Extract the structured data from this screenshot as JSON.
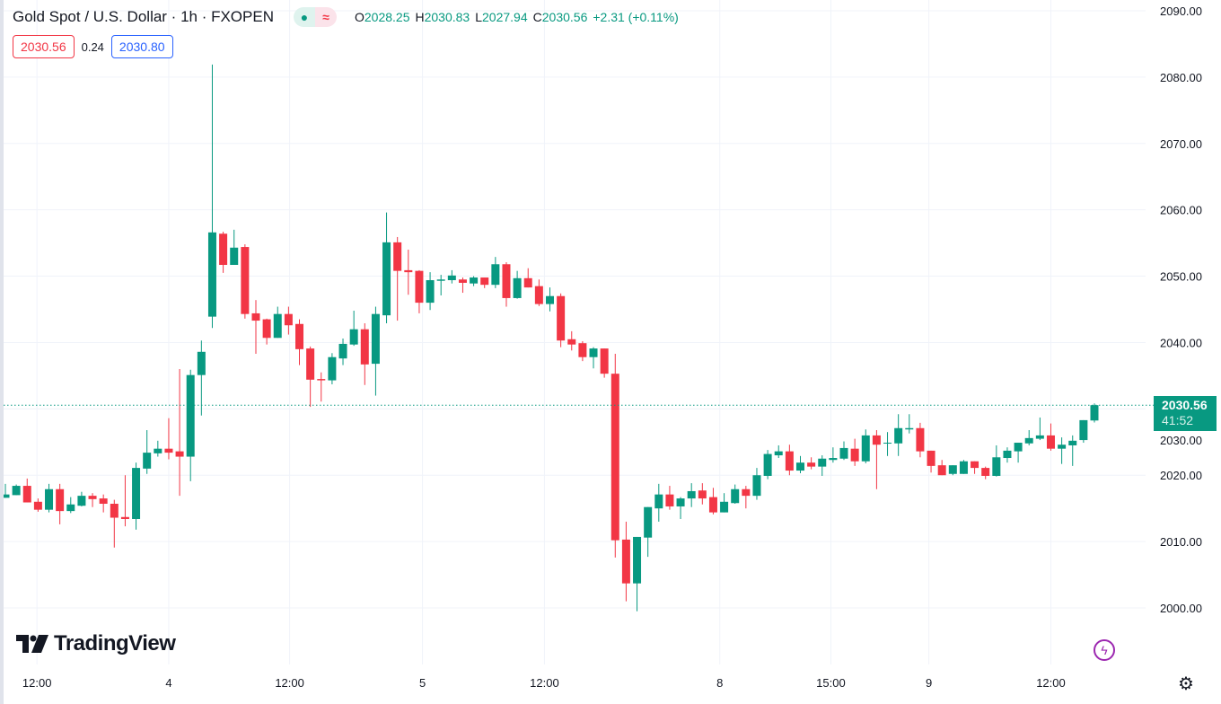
{
  "header": {
    "title": "Gold Spot / U.S. Dollar · 1h · FXOPEN",
    "ohlc": {
      "o_label": "O",
      "o": "2028.25",
      "h_label": "H",
      "h": "2030.83",
      "l_label": "L",
      "l": "2027.94",
      "c_label": "C",
      "c": "2030.56",
      "change": "+2.31 (+0.11%)"
    },
    "sell_price": "2030.56",
    "spread": "0.24",
    "buy_price": "2030.80"
  },
  "price_tag": {
    "price": "2030.56",
    "countdown": "41:52"
  },
  "branding": {
    "logo_text": "TradingView"
  },
  "colors": {
    "up": "#089981",
    "down": "#f23645",
    "grid": "#f0f3fa",
    "accent_purple": "#9c27b0"
  },
  "icons": [
    "market-open-dot-icon",
    "delay-wave-icon",
    "lightning-icon",
    "gear-icon",
    "tradingview-logo-icon"
  ],
  "chart_data": {
    "type": "candlestick",
    "title": "Gold Spot / U.S. Dollar · 1h · FXOPEN",
    "ylim": [
      1993,
      2092
    ],
    "y_ticks": [
      "2000.00",
      "2010.00",
      "2020.00",
      "2030.00",
      "2040.00",
      "2050.00",
      "2060.00",
      "2070.00",
      "2080.00",
      "2090.00"
    ],
    "x_ticks": [
      {
        "label": "12:00",
        "index": 2.9
      },
      {
        "label": "4",
        "index": 15
      },
      {
        "label": "12:00",
        "index": 26.1
      },
      {
        "label": "5",
        "index": 38.3
      },
      {
        "label": "12:00",
        "index": 49.5
      },
      {
        "label": "8",
        "index": 65.6
      },
      {
        "label": "15:00",
        "index": 75.8
      },
      {
        "label": "9",
        "index": 84.8
      },
      {
        "label": "12:00",
        "index": 96
      }
    ],
    "last_price": 2030.56,
    "grid": true,
    "ohlc": [
      [
        2016.6,
        2018.7,
        2016.6,
        2017.1
      ],
      [
        2017.0,
        2018.6,
        2017.0,
        2018.4
      ],
      [
        2018.4,
        2019.5,
        2015.9,
        2015.9
      ],
      [
        2016.0,
        2016.5,
        2014.5,
        2014.8
      ],
      [
        2014.8,
        2018.7,
        2014.4,
        2017.9
      ],
      [
        2017.9,
        2018.7,
        2012.6,
        2014.6
      ],
      [
        2014.6,
        2016.7,
        2014.3,
        2015.6
      ],
      [
        2015.4,
        2017.5,
        2015.3,
        2016.9
      ],
      [
        2016.9,
        2017.3,
        2015.2,
        2016.4
      ],
      [
        2016.5,
        2017.1,
        2014.4,
        2015.7
      ],
      [
        2015.7,
        2016.3,
        2009.1,
        2013.6
      ],
      [
        2013.7,
        2020.0,
        2012.3,
        2013.4
      ],
      [
        2013.4,
        2021.9,
        2011.8,
        2021.1
      ],
      [
        2021.0,
        2026.8,
        2020.2,
        2023.4
      ],
      [
        2023.3,
        2025.2,
        2022.8,
        2024.0
      ],
      [
        2024.0,
        2028.6,
        2022.4,
        2023.4
      ],
      [
        2023.6,
        2036.0,
        2016.9,
        2022.8
      ],
      [
        2022.8,
        2035.9,
        2019.1,
        2035.1
      ],
      [
        2035.1,
        2040.3,
        2029.0,
        2038.6
      ],
      [
        2043.9,
        2081.9,
        2042.2,
        2056.6
      ],
      [
        2056.4,
        2056.7,
        2050.5,
        2051.7
      ],
      [
        2051.7,
        2057.0,
        2051.7,
        2054.3
      ],
      [
        2054.4,
        2054.8,
        2043.6,
        2044.3
      ],
      [
        2044.4,
        2046.4,
        2038.3,
        2043.3
      ],
      [
        2043.5,
        2043.6,
        2039.7,
        2040.7
      ],
      [
        2040.7,
        2045.4,
        2040.7,
        2044.3
      ],
      [
        2044.3,
        2045.4,
        2041.2,
        2042.6
      ],
      [
        2042.8,
        2043.5,
        2036.6,
        2039.0
      ],
      [
        2039.1,
        2039.4,
        2030.3,
        2034.4
      ],
      [
        2034.5,
        2035.5,
        2031.1,
        2034.3
      ],
      [
        2034.3,
        2038.4,
        2033.7,
        2037.8
      ],
      [
        2037.6,
        2040.6,
        2036.6,
        2039.8
      ],
      [
        2039.7,
        2044.8,
        2039.5,
        2042.0
      ],
      [
        2042.0,
        2042.9,
        2033.6,
        2036.7
      ],
      [
        2036.8,
        2045.4,
        2032.0,
        2044.3
      ],
      [
        2044.1,
        2059.6,
        2042.9,
        2055.1
      ],
      [
        2055.1,
        2055.9,
        2043.3,
        2050.8
      ],
      [
        2050.9,
        2054.0,
        2047.2,
        2050.6
      ],
      [
        2050.8,
        2050.9,
        2044.4,
        2046.0
      ],
      [
        2046.0,
        2050.6,
        2044.9,
        2049.4
      ],
      [
        2049.3,
        2050.2,
        2047.1,
        2049.5
      ],
      [
        2049.4,
        2050.9,
        2048.9,
        2050.1
      ],
      [
        2049.5,
        2049.8,
        2047.5,
        2049.0
      ],
      [
        2048.9,
        2050.0,
        2048.5,
        2049.8
      ],
      [
        2049.8,
        2049.8,
        2048.2,
        2048.7
      ],
      [
        2048.7,
        2052.9,
        2048.2,
        2051.8
      ],
      [
        2051.8,
        2052.1,
        2045.4,
        2046.7
      ],
      [
        2046.7,
        2050.8,
        2046.6,
        2049.7
      ],
      [
        2049.7,
        2051.2,
        2048.3,
        2048.3
      ],
      [
        2048.5,
        2049.5,
        2045.5,
        2045.8
      ],
      [
        2045.8,
        2048.3,
        2044.7,
        2047.0
      ],
      [
        2047.0,
        2047.4,
        2039.3,
        2040.3
      ],
      [
        2040.5,
        2041.7,
        2038.8,
        2039.7
      ],
      [
        2039.9,
        2040.2,
        2037.2,
        2037.8
      ],
      [
        2037.8,
        2039.3,
        2036.1,
        2039.1
      ],
      [
        2039.1,
        2039.1,
        2034.7,
        2035.3
      ],
      [
        2035.3,
        2038.3,
        2007.6,
        2010.2
      ],
      [
        2010.3,
        2013.0,
        2001.0,
        2003.7
      ],
      [
        2003.7,
        2010.7,
        1999.5,
        2010.7
      ],
      [
        2010.6,
        2015.2,
        2007.7,
        2015.2
      ],
      [
        2015.0,
        2018.7,
        2013.0,
        2017.1
      ],
      [
        2017.1,
        2018.4,
        2014.8,
        2015.3
      ],
      [
        2015.3,
        2016.7,
        2013.4,
        2016.5
      ],
      [
        2016.5,
        2018.8,
        2015.2,
        2017.6
      ],
      [
        2017.7,
        2018.8,
        2015.6,
        2016.5
      ],
      [
        2016.7,
        2018.1,
        2014.1,
        2014.4
      ],
      [
        2014.4,
        2017.3,
        2014.4,
        2016.0
      ],
      [
        2015.8,
        2018.6,
        2015.7,
        2017.9
      ],
      [
        2017.9,
        2018.4,
        2015.0,
        2016.9
      ],
      [
        2016.9,
        2021.1,
        2016.3,
        2020.0
      ],
      [
        2019.9,
        2023.8,
        2019.4,
        2023.2
      ],
      [
        2023.0,
        2024.5,
        2022.6,
        2023.6
      ],
      [
        2023.6,
        2024.6,
        2020.0,
        2020.7
      ],
      [
        2020.7,
        2022.9,
        2020.3,
        2021.9
      ],
      [
        2021.9,
        2022.7,
        2020.9,
        2021.3
      ],
      [
        2021.3,
        2023.0,
        2019.9,
        2022.5
      ],
      [
        2022.3,
        2024.2,
        2021.9,
        2022.6
      ],
      [
        2022.5,
        2025.1,
        2022.3,
        2024.1
      ],
      [
        2024.0,
        2025.5,
        2021.4,
        2022.1
      ],
      [
        2022.1,
        2026.9,
        2021.8,
        2026.0
      ],
      [
        2026.0,
        2026.8,
        2017.9,
        2024.6
      ],
      [
        2024.8,
        2026.5,
        2022.9,
        2024.9
      ],
      [
        2024.8,
        2029.2,
        2022.9,
        2027.1
      ],
      [
        2026.9,
        2029.2,
        2026.3,
        2027.1
      ],
      [
        2027.1,
        2027.9,
        2022.7,
        2023.6
      ],
      [
        2023.7,
        2023.7,
        2020.4,
        2021.4
      ],
      [
        2021.5,
        2022.3,
        2020.0,
        2020.0
      ],
      [
        2020.2,
        2021.5,
        2020.0,
        2021.5
      ],
      [
        2020.2,
        2022.3,
        2020.2,
        2022.1
      ],
      [
        2022.1,
        2022.1,
        2020.2,
        2021.1
      ],
      [
        2021.1,
        2021.3,
        2019.4,
        2019.9
      ],
      [
        2019.9,
        2024.5,
        2019.8,
        2022.7
      ],
      [
        2022.6,
        2024.2,
        2021.9,
        2023.7
      ],
      [
        2023.6,
        2024.9,
        2021.9,
        2024.9
      ],
      [
        2024.8,
        2026.8,
        2024.5,
        2025.6
      ],
      [
        2025.5,
        2028.7,
        2025.3,
        2026.0
      ],
      [
        2026.0,
        2027.8,
        2023.7,
        2024.0
      ],
      [
        2024.0,
        2025.7,
        2021.7,
        2024.6
      ],
      [
        2024.5,
        2026.0,
        2021.4,
        2025.2
      ],
      [
        2025.3,
        2028.3,
        2024.9,
        2028.3
      ],
      [
        2028.25,
        2030.83,
        2027.94,
        2030.56
      ]
    ]
  }
}
